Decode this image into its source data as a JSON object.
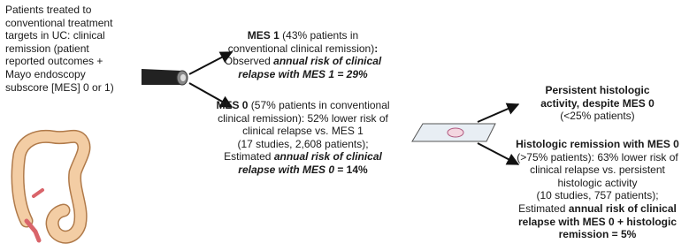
{
  "blocks": {
    "patient_criteria": {
      "lines": [
        [
          {
            "text": "Patients treated to"
          }
        ],
        [
          {
            "text": "conventional treatment"
          }
        ],
        [
          {
            "text": "targets in UC: clinical"
          }
        ],
        [
          {
            "text": "remission (patient"
          }
        ],
        [
          {
            "text": "reported outcomes +"
          }
        ],
        [
          {
            "text": "Mayo endoscopy"
          }
        ],
        [
          {
            "text": "subscore [MES] 0 or 1)"
          }
        ]
      ]
    },
    "mes1_outcome": {
      "lines": [
        [
          {
            "text": "MES 1",
            "style": "bold"
          },
          {
            "text": " (43% patients in"
          }
        ],
        [
          {
            "text": "conventional clinical remission)"
          },
          {
            "text": ":",
            "style": "bold"
          }
        ],
        [
          {
            "text": "Observed "
          },
          {
            "text": "annual risk of clinical",
            "style": "bold-italic"
          }
        ],
        [
          {
            "text": "relapse with MES 1 = 29%",
            "style": "bold-italic"
          }
        ]
      ]
    },
    "mes0_outcome": {
      "lines": [
        [
          {
            "text": "MES 0",
            "style": "bold"
          },
          {
            "text": " (57% patients in conventional"
          }
        ],
        [
          {
            "text": "clinical remission): 52% lower risk of"
          }
        ],
        [
          {
            "text": "clinical relapse vs. MES 1"
          }
        ],
        [
          {
            "text": "(17 studies, 2,608 patients);"
          }
        ],
        [
          {
            "text": "Estimated "
          },
          {
            "text": "annual risk of clinical",
            "style": "bold-italic"
          }
        ],
        [
          {
            "text": "relapse with MES 0",
            "style": "bold-italic"
          },
          {
            "text": " = 14%",
            "style": "bold"
          }
        ]
      ]
    },
    "persistent_activity": {
      "lines": [
        [
          {
            "text": "Persistent histologic",
            "style": "bold"
          }
        ],
        [
          {
            "text": "activity, despite MES 0",
            "style": "bold"
          }
        ],
        [
          {
            "text": "(<25% patients)"
          }
        ]
      ]
    },
    "histologic_remission": {
      "lines": [
        [
          {
            "text": "Histologic remission with MES 0",
            "style": "bold"
          }
        ],
        [
          {
            "text": "(>75% patients): 63% lower risk of"
          }
        ],
        [
          {
            "text": "clinical relapse vs. persistent"
          }
        ],
        [
          {
            "text": "histologic activity"
          }
        ],
        [
          {
            "text": "(10 studies, 757 patients);"
          }
        ],
        [
          {
            "text": "Estimated "
          },
          {
            "text": "annual risk of clinical",
            "style": "bold"
          }
        ],
        [
          {
            "text": "relapse with MES 0 + histologic",
            "style": "bold"
          }
        ],
        [
          {
            "text": "remission = 5%",
            "style": "bold"
          }
        ]
      ]
    }
  }
}
